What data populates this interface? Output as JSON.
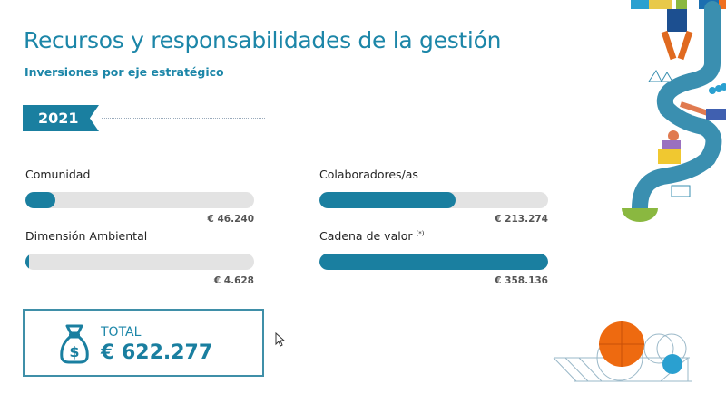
{
  "header": {
    "title": "Recursos y responsabilidades de la gestión",
    "subtitle": "Inversiones por eje estratégico"
  },
  "year": "2021",
  "metrics": [
    {
      "label": "Comunidad",
      "note": "",
      "amount": "€ 46.240",
      "value": 46240
    },
    {
      "label": "Colaboradores/as",
      "note": "",
      "amount": "€ 213.274",
      "value": 213274
    },
    {
      "label": "Dimensión Ambiental",
      "note": "",
      "amount": "€ 4.628",
      "value": 4628
    },
    {
      "label": "Cadena de valor",
      "note": "(*)",
      "amount": "€ 358.136",
      "value": 358136
    }
  ],
  "total": {
    "label": "TOTAL",
    "value": "€ 622.277"
  },
  "colors": {
    "accent": "#1a7fa0",
    "track": "#e3e3e3"
  }
}
